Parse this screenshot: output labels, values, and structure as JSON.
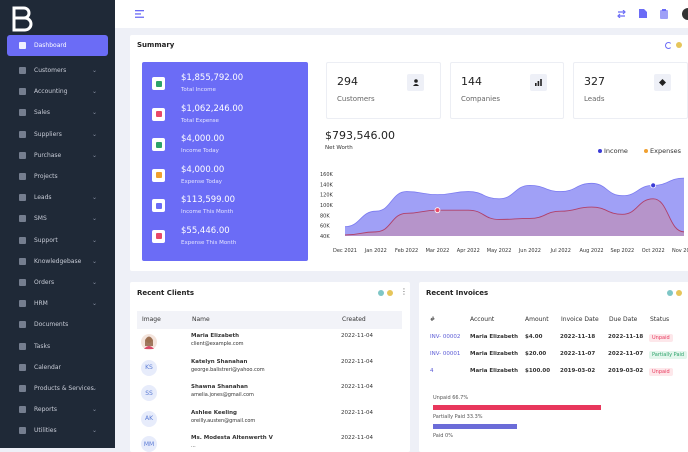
{
  "sidebar": {
    "items": [
      {
        "label": "Dashboard",
        "chevron": false
      },
      {
        "label": "Customers",
        "chevron": true
      },
      {
        "label": "Accounting",
        "chevron": true
      },
      {
        "label": "Sales",
        "chevron": true
      },
      {
        "label": "Suppliers",
        "chevron": true
      },
      {
        "label": "Purchase",
        "chevron": true
      },
      {
        "label": "Projects",
        "chevron": false
      },
      {
        "label": "Leads",
        "chevron": true
      },
      {
        "label": "SMS",
        "chevron": true
      },
      {
        "label": "Support",
        "chevron": true
      },
      {
        "label": "Knowledgebase",
        "chevron": true
      },
      {
        "label": "Orders",
        "chevron": true
      },
      {
        "label": "HRM",
        "chevron": true
      },
      {
        "label": "Documents",
        "chevron": false
      },
      {
        "label": "Tasks",
        "chevron": false
      },
      {
        "label": "Calendar",
        "chevron": false
      },
      {
        "label": "Products & Services",
        "chevron": true
      },
      {
        "label": "Reports",
        "chevron": true
      },
      {
        "label": "Utilities",
        "chevron": true
      }
    ]
  },
  "summary": {
    "title": "Summary",
    "totals": [
      {
        "value": "$1,855,792.00",
        "label": "Total Income",
        "color": "#2ea36b"
      },
      {
        "value": "$1,062,246.00",
        "label": "Total Expense",
        "color": "#e84a6a"
      },
      {
        "value": "$4,000.00",
        "label": "Income Today",
        "color": "#2ea36b"
      },
      {
        "value": "$4,000.00",
        "label": "Expense Today",
        "color": "#f0a030"
      },
      {
        "value": "$113,599.00",
        "label": "Income This Month",
        "color": "#6b6cf6"
      },
      {
        "value": "$55,446.00",
        "label": "Expense This Month",
        "color": "#e84a6a"
      }
    ],
    "stats": [
      {
        "value": "294",
        "label": "Customers",
        "icon": "user-icon"
      },
      {
        "value": "144",
        "label": "Companies",
        "icon": "bar-chart-icon"
      },
      {
        "value": "327",
        "label": "Leads",
        "icon": "diamond-icon"
      }
    ],
    "net_worth": "$793,546.00",
    "net_worth_label": "Net Worth",
    "legend": {
      "income": "Income",
      "expenses": "Expenses"
    }
  },
  "chart_data": {
    "type": "area",
    "categories": [
      "Dec 2021",
      "Jan 2022",
      "Feb 2022",
      "Mar 2022",
      "Apr 2022",
      "May 2022",
      "Jun 2022",
      "Jul 2022",
      "Aug 2022",
      "Sep 2022",
      "Oct 2022",
      "Nov 2022"
    ],
    "y_ticks": [
      "160K",
      "140K",
      "120K",
      "100K",
      "80K",
      "60K",
      "40K"
    ],
    "ylim": [
      40000,
      160000
    ],
    "series": [
      {
        "name": "Income",
        "color": "#8f8ff5",
        "values": [
          58000,
          88000,
          126000,
          120000,
          126000,
          112000,
          138000,
          126000,
          142000,
          118000,
          138000,
          152000
        ]
      },
      {
        "name": "Expenses",
        "color": "#c98aa6",
        "values": [
          42000,
          48000,
          84000,
          90000,
          90000,
          72000,
          74000,
          88000,
          96000,
          82000,
          112000,
          48000
        ]
      }
    ],
    "grid": false,
    "legend": "top-right"
  },
  "recent_clients": {
    "title": "Recent Clients",
    "headers": [
      "Image",
      "Name",
      "Created"
    ],
    "rows": [
      {
        "initials": "",
        "name": "Maria Elizabeth",
        "email": "client@example.com",
        "created": "2022-11-04"
      },
      {
        "initials": "KS",
        "name": "Katelyn Shanahan",
        "email": "george.balistreri@yahoo.com",
        "created": "2022-11-04"
      },
      {
        "initials": "SS",
        "name": "Shawna Shanahan",
        "email": "amelia.jones@gmail.com",
        "created": "2022-11-04"
      },
      {
        "initials": "AK",
        "name": "Ashlee Keeling",
        "email": "oreilly.austen@gmail.com",
        "created": "2022-11-04"
      },
      {
        "initials": "MM",
        "name": "Ms. Modesta Altenwerth V",
        "email": "...",
        "created": "2022-11-04"
      }
    ]
  },
  "recent_invoices": {
    "title": "Recent Invoices",
    "headers": [
      "#",
      "Account",
      "Amount",
      "Invoice Date",
      "Due Date",
      "Status"
    ],
    "rows": [
      {
        "id": "INV- 00002",
        "account": "Maria Elizabeth",
        "amount": "$4.00",
        "invoice_date": "2022-11-18",
        "due_date": "2022-11-18",
        "status": "Unpaid"
      },
      {
        "id": "INV- 00001",
        "account": "Maria Elizabeth",
        "amount": "$20.00",
        "invoice_date": "2022-11-07",
        "due_date": "2022-11-07",
        "status": "Partially Paid"
      },
      {
        "id": "4",
        "account": "Maria Elizabeth",
        "amount": "$100.00",
        "invoice_date": "2019-03-02",
        "due_date": "2019-03-02",
        "status": "Unpaid"
      }
    ],
    "progress": [
      {
        "label": "Unpaid 66.7%",
        "value": 66.7,
        "color": "#e8375c"
      },
      {
        "label": "Partially Paid 33.3%",
        "value": 33.3,
        "color": "#6b6cd8"
      },
      {
        "label": "Paid 0%",
        "value": 0,
        "color": "#2ea36b"
      }
    ]
  }
}
